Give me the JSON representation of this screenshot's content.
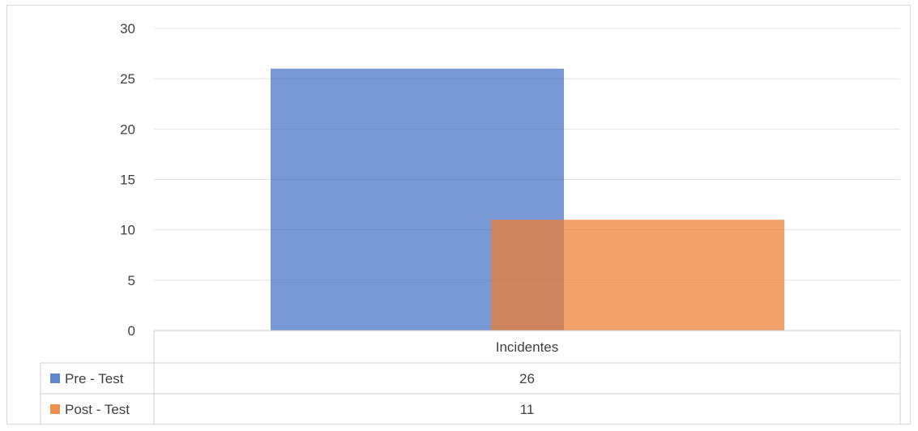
{
  "chart_data": {
    "type": "bar",
    "categories": [
      "Incidentes"
    ],
    "series": [
      {
        "name": "Pre - Test",
        "values": [
          26
        ],
        "color": "#4472c4"
      },
      {
        "name": "Post - Test",
        "values": [
          11
        ],
        "color": "#ed7d31"
      }
    ],
    "ylim": [
      0,
      30
    ],
    "y_ticks": [
      0,
      5,
      10,
      15,
      20,
      25,
      30
    ],
    "grid": true,
    "legend": "data-table-bottom"
  }
}
